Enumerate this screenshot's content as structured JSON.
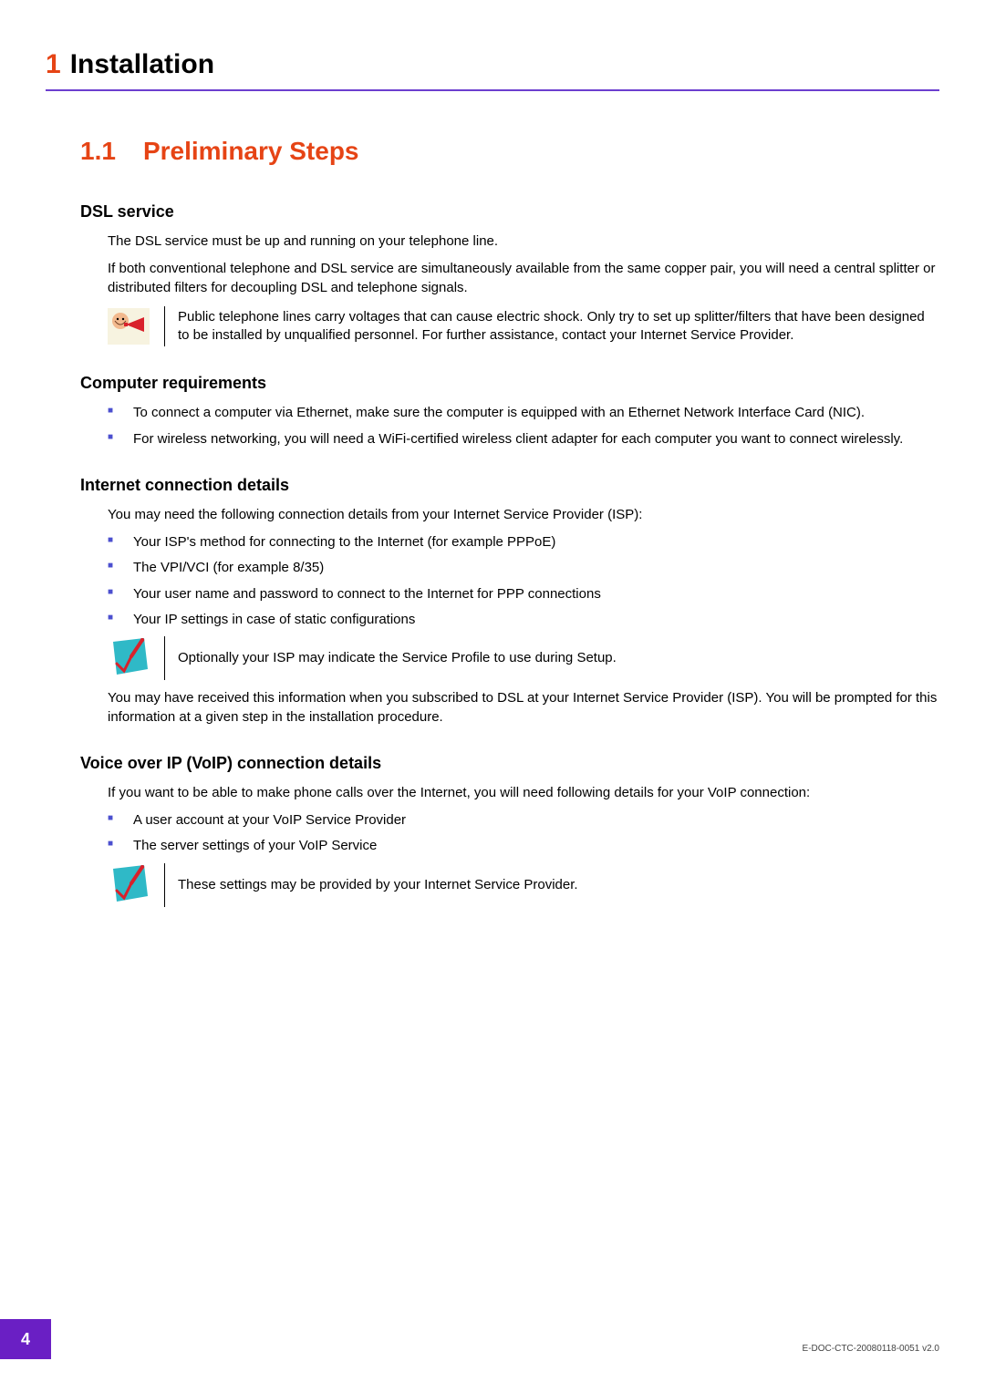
{
  "colors": {
    "chapter_num": "#e64415",
    "chapter_title": "#000000",
    "rule": "#6c3fcf",
    "section": "#e64415",
    "sub_title": "#000000",
    "bullet": "#4b4fcf",
    "page_tab_bg": "#6a1fc4",
    "warn_bg": "#f7f3e0",
    "warn_skin": "#f2b98e",
    "warn_red": "#d9212b",
    "check_bg": "#2fb9c7",
    "check_pen": "#d9212b"
  },
  "chapter": {
    "num": "1",
    "title": "Installation"
  },
  "section": {
    "num": "1.1",
    "title": "Preliminary Steps"
  },
  "dsl": {
    "heading": "DSL service",
    "p1": "The DSL service must be up and running on your telephone line.",
    "p2": "If both conventional telephone and DSL service are simultaneously available from the same copper pair, you will need a central splitter or distributed filters for decoupling DSL and telephone signals.",
    "note": "Public telephone lines carry voltages that can cause electric shock. Only try to set up splitter/filters that have been designed to be installed by unqualified personnel. For further assistance, contact your Internet Service Provider."
  },
  "comp": {
    "heading": "Computer requirements",
    "b1": "To connect a computer via Ethernet, make sure the computer is equipped with an Ethernet Network Interface Card (NIC).",
    "b2": "For wireless networking, you will need a WiFi-certified wireless client adapter for each computer you want to connect wirelessly."
  },
  "inet": {
    "heading": "Internet connection details",
    "intro": "You may need the following connection details from your Internet Service Provider (ISP):",
    "b1": "Your ISP's method for connecting to the Internet (for example PPPoE)",
    "b2": "The VPI/VCI (for example 8/35)",
    "b3": "Your user name and password to connect to the Internet for PPP connections",
    "b4": "Your IP settings in case of static configurations",
    "note": "Optionally your ISP may indicate the Service Profile to use during Setup.",
    "outro": "You may have received this information when you subscribed to DSL at your Internet Service Provider (ISP). You will be prompted for this information at a given step in the installation procedure."
  },
  "voip": {
    "heading": "Voice over IP (VoIP) connection details",
    "intro": "If you want to be able to make phone calls over the Internet, you will need following details for your VoIP connection:",
    "b1": "A user account at your VoIP Service Provider",
    "b2": "The server settings of your VoIP Service",
    "note": "These settings may be provided by your Internet Service Provider."
  },
  "footer": {
    "page": "4",
    "doc_id": "E-DOC-CTC-20080118-0051 v2.0"
  }
}
